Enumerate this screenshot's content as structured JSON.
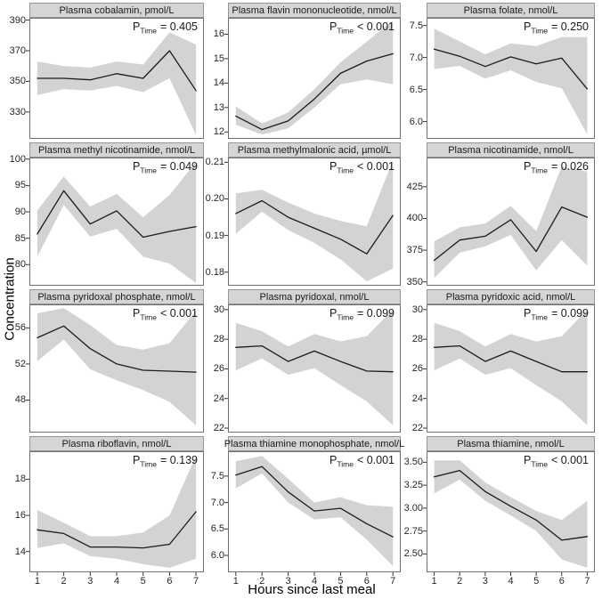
{
  "figure": {
    "colors": {
      "band": "#d3d3d3",
      "line": "#1b1b1b",
      "strip_bg": "#d5d5d5",
      "panel_border": "#707070",
      "tick": "#333333",
      "background": "#ffffff"
    }
  },
  "chart_data": {
    "type": "line",
    "x": [
      1,
      2,
      3,
      4,
      5,
      6,
      7
    ],
    "xtick_labels": [
      "1",
      "2",
      "3",
      "4",
      "5",
      "6",
      "7"
    ],
    "xlabel": "Hours since last meal",
    "ylabel": "Concentration",
    "band_style": "shaded confidence band around mean line",
    "panels": [
      {
        "title": "Plasma cobalamin, pmol/L",
        "p": {
          "prefix": "P",
          "sub": "Time",
          "value": "= 0.405"
        },
        "ylim": [
          312.5,
          391.5
        ],
        "ytick_values": [
          330,
          350,
          370,
          390
        ],
        "ytick_labels": [
          "330",
          "350",
          "370",
          "390"
        ],
        "mean": [
          352,
          352,
          351,
          355,
          352,
          370,
          344
        ],
        "lower": [
          341,
          345,
          344,
          347,
          343,
          352,
          315
        ],
        "upper": [
          363,
          360,
          359,
          363,
          361,
          382,
          374
        ]
      },
      {
        "title": "Plasma flavin mononucleotide, nmol/L",
        "p": {
          "prefix": "P",
          "sub": "Time",
          "value": "< 0.001"
        },
        "ylim": [
          11.72,
          16.67
        ],
        "ytick_values": [
          12,
          13,
          14,
          15,
          16
        ],
        "ytick_labels": [
          "12",
          "13",
          "14",
          "15",
          "16"
        ],
        "mean": [
          12.65,
          12.1,
          12.45,
          13.35,
          14.4,
          14.9,
          15.2
        ],
        "lower": [
          12.3,
          11.9,
          12.15,
          13.0,
          13.95,
          14.15,
          13.95
        ],
        "upper": [
          13.05,
          12.35,
          12.8,
          13.75,
          14.85,
          15.7,
          16.55
        ]
      },
      {
        "title": "Plasma folate, nmol/L",
        "p": {
          "prefix": "P",
          "sub": "Time",
          "value": "= 0.250"
        },
        "ylim": [
          5.73,
          7.62
        ],
        "ytick_values": [
          6.0,
          6.5,
          7.0,
          7.5
        ],
        "ytick_labels": [
          "6.0",
          "6.5",
          "7.0",
          "7.5"
        ],
        "mean": [
          7.13,
          7.02,
          6.86,
          7.01,
          6.9,
          6.99,
          6.51
        ],
        "lower": [
          6.82,
          6.87,
          6.67,
          6.8,
          6.62,
          6.52,
          5.8
        ],
        "upper": [
          7.45,
          7.25,
          7.05,
          7.22,
          7.18,
          7.32,
          7.32
        ]
      },
      {
        "title": "Plasma methyl nicotinamide, nmol/L",
        "p": {
          "prefix": "P",
          "sub": "Time",
          "value": "= 0.049"
        },
        "ylim": [
          76,
          100.3
        ],
        "ytick_values": [
          80,
          85,
          90,
          95,
          100
        ],
        "ytick_labels": [
          "80",
          "85",
          "90",
          "95",
          "100"
        ],
        "mean": [
          85.8,
          94,
          87.7,
          90.2,
          85.2,
          86.3,
          87.2
        ],
        "lower": [
          81.5,
          91.3,
          85.3,
          86.8,
          81.5,
          80.2,
          76.5
        ],
        "upper": [
          90.3,
          96.7,
          91,
          93.4,
          89,
          93.2,
          99.5
        ]
      },
      {
        "title": "Plasma methylmalonic acid, µmol/L",
        "p": {
          "prefix": "P",
          "sub": "Time",
          "value": "< 0.001"
        },
        "ylim": [
          0.1763,
          0.2113
        ],
        "ytick_values": [
          0.18,
          0.19,
          0.2,
          0.21
        ],
        "ytick_labels": [
          "0.18",
          "0.19",
          "0.20",
          "0.21"
        ],
        "mean": [
          0.196,
          0.1995,
          0.195,
          0.192,
          0.189,
          0.185,
          0.1955
        ],
        "lower": [
          0.1905,
          0.1965,
          0.1915,
          0.188,
          0.1835,
          0.1775,
          0.181
        ],
        "upper": [
          0.2015,
          0.2025,
          0.199,
          0.196,
          0.194,
          0.1925,
          0.2105
        ]
      },
      {
        "title": "Plasma nicotinamide, nmol/L",
        "p": {
          "prefix": "P",
          "sub": "Time",
          "value": "= 0.026"
        },
        "ylim": [
          347,
          448
        ],
        "ytick_values": [
          350,
          375,
          400,
          425
        ],
        "ytick_labels": [
          "350",
          "375",
          "400",
          "425"
        ],
        "mean": [
          367,
          383,
          386,
          399,
          374,
          409,
          401
        ],
        "lower": [
          353,
          373,
          378,
          387,
          359,
          383,
          363
        ],
        "upper": [
          382,
          393,
          396,
          410,
          390,
          441,
          437
        ]
      },
      {
        "title": "Plasma pyridoxal phosphate, nmol/L",
        "p": {
          "prefix": "P",
          "sub": "Time",
          "value": "< 0.001"
        },
        "ylim": [
          44.4,
          58.6
        ],
        "ytick_values": [
          48,
          52,
          56
        ],
        "ytick_labels": [
          "48",
          "52",
          "56"
        ],
        "mean": [
          54.9,
          56.2,
          53.7,
          52.0,
          51.3,
          51.2,
          51.1
        ],
        "lower": [
          52.3,
          54.7,
          51.4,
          50.2,
          49.1,
          47.8,
          45.2
        ],
        "upper": [
          57.6,
          58.2,
          56.3,
          54.1,
          53.6,
          54.3,
          57.9
        ]
      },
      {
        "title": "Plasma pyridoxal, nmol/L",
        "p": {
          "prefix": "P",
          "sub": "Time",
          "value": "= 0.099"
        },
        "ylim": [
          21.7,
          30.35
        ],
        "ytick_values": [
          22,
          24,
          26,
          28,
          30
        ],
        "ytick_labels": [
          "22",
          "24",
          "26",
          "28",
          "30"
        ],
        "mean": [
          27.45,
          27.55,
          26.5,
          27.2,
          26.5,
          25.85,
          25.8
        ],
        "lower": [
          25.9,
          26.7,
          25.6,
          26.05,
          24.9,
          23.8,
          22.2
        ],
        "upper": [
          29.1,
          28.55,
          27.5,
          28.35,
          27.85,
          28.2,
          30.0
        ]
      },
      {
        "title": "Plasma pyridoxic acid, nmol/L",
        "p": {
          "prefix": "P",
          "sub": "Time",
          "value": "= 0.099"
        },
        "ylim": [
          21.7,
          30.35
        ],
        "ytick_values": [
          22,
          24,
          26,
          28,
          30
        ],
        "ytick_labels": [
          "22",
          "24",
          "26",
          "28",
          "30"
        ],
        "mean": [
          27.45,
          27.55,
          26.5,
          27.2,
          26.5,
          25.8,
          25.8
        ],
        "lower": [
          25.9,
          26.7,
          25.6,
          26.05,
          24.9,
          23.8,
          22.2
        ],
        "upper": [
          29.1,
          28.55,
          27.5,
          28.35,
          27.85,
          28.2,
          30.0
        ]
      },
      {
        "title": "Plasma riboflavin, nmol/L",
        "p": {
          "prefix": "P",
          "sub": "Time",
          "value": "= 0.139"
        },
        "ylim": [
          12.85,
          19.55
        ],
        "ytick_values": [
          14,
          16,
          18
        ],
        "ytick_labels": [
          "14",
          "16",
          "18"
        ],
        "mean": [
          15.2,
          15.0,
          14.25,
          14.25,
          14.2,
          14.4,
          16.2
        ],
        "lower": [
          14.2,
          14.45,
          13.75,
          13.6,
          13.3,
          13.1,
          13.6
        ],
        "upper": [
          16.3,
          15.6,
          14.85,
          14.85,
          15.05,
          16.0,
          19.3
        ]
      },
      {
        "title": "Plasma thiamine monophosphate, nmol/L",
        "p": {
          "prefix": "P",
          "sub": "Time",
          "value": "< 0.001"
        },
        "ylim": [
          5.68,
          7.97
        ],
        "ytick_values": [
          6.0,
          6.5,
          7.0,
          7.5
        ],
        "ytick_labels": [
          "6.0",
          "6.5",
          "7.0",
          "7.5"
        ],
        "mean": [
          7.52,
          7.68,
          7.2,
          6.84,
          6.89,
          6.6,
          6.35
        ],
        "lower": [
          7.27,
          7.55,
          7.0,
          6.68,
          6.72,
          6.3,
          5.8
        ],
        "upper": [
          7.78,
          7.88,
          7.45,
          7.0,
          7.1,
          6.95,
          6.92
        ]
      },
      {
        "title": "Plasma thiamine, nmol/L",
        "p": {
          "prefix": "P",
          "sub": "Time",
          "value": "< 0.001"
        },
        "ylim": [
          2.3,
          3.62
        ],
        "ytick_values": [
          2.5,
          2.75,
          3.0,
          3.25,
          3.5
        ],
        "ytick_labels": [
          "2.50",
          "2.75",
          "3.00",
          "3.25",
          "3.50"
        ],
        "mean": [
          3.34,
          3.41,
          3.18,
          3.02,
          2.87,
          2.65,
          2.69
        ],
        "lower": [
          3.16,
          3.31,
          3.08,
          2.92,
          2.75,
          2.44,
          2.35
        ],
        "upper": [
          3.52,
          3.52,
          3.28,
          3.12,
          2.97,
          2.87,
          3.08
        ]
      }
    ]
  }
}
